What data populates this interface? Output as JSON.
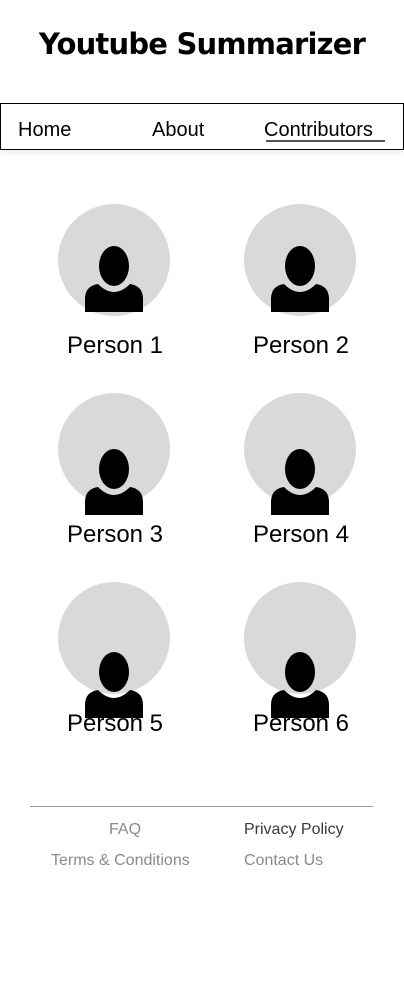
{
  "header": {
    "title": "Youtube Summarizer"
  },
  "nav": {
    "items": [
      {
        "label": "Home"
      },
      {
        "label": "About"
      },
      {
        "label": "Contributors"
      }
    ],
    "active": "Contributors"
  },
  "contributors": [
    {
      "name": "Person 1",
      "icon": "user-silhouette-icon"
    },
    {
      "name": "Person 2",
      "icon": "user-silhouette-icon"
    },
    {
      "name": "Person 3",
      "icon": "user-silhouette-icon"
    },
    {
      "name": "Person 4",
      "icon": "user-silhouette-icon"
    },
    {
      "name": "Person 5",
      "icon": "user-silhouette-icon"
    },
    {
      "name": "Person 6",
      "icon": "user-silhouette-icon"
    }
  ],
  "footer": {
    "links": [
      {
        "label": "FAQ"
      },
      {
        "label": "Privacy Policy"
      },
      {
        "label": "Terms & Conditions"
      },
      {
        "label": "Contact Us"
      }
    ]
  },
  "colors": {
    "avatar_bg": "#d9d9d9",
    "footer_link": "#8a8a8a",
    "footer_link_dark": "#3a3a3a",
    "divider": "#9a9a9a"
  }
}
